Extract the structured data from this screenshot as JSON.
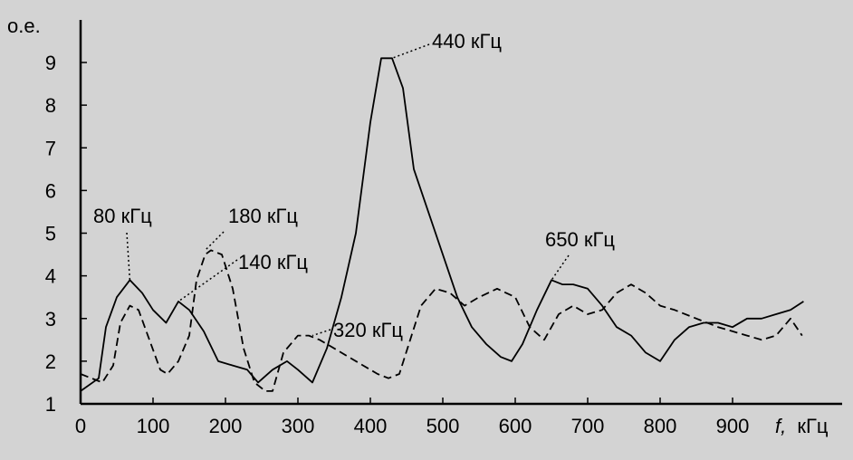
{
  "chart_data": {
    "type": "line",
    "xlabel_var": "f,",
    "xlabel_unit": "кГц",
    "ylabel": "о.е.",
    "xlim": [
      0,
      1000
    ],
    "ylim": [
      1,
      10
    ],
    "x_ticks": [
      "0",
      "100",
      "200",
      "300",
      "400",
      "500",
      "600",
      "700",
      "800",
      "900"
    ],
    "y_ticks": [
      "1",
      "2",
      "3",
      "4",
      "5",
      "6",
      "7",
      "8",
      "9"
    ],
    "grid": false,
    "legend": "none",
    "series": [
      {
        "style": "solid",
        "x": [
          0,
          25,
          35,
          50,
          68,
          85,
          100,
          118,
          135,
          150,
          170,
          190,
          210,
          230,
          245,
          265,
          285,
          300,
          320,
          340,
          360,
          380,
          400,
          415,
          430,
          445,
          460,
          480,
          500,
          520,
          540,
          560,
          580,
          595,
          610,
          630,
          650,
          665,
          680,
          700,
          720,
          740,
          760,
          780,
          800,
          820,
          840,
          860,
          880,
          900,
          920,
          940,
          960,
          980,
          998
        ],
        "y": [
          1.3,
          1.6,
          2.8,
          3.5,
          3.9,
          3.6,
          3.2,
          2.9,
          3.4,
          3.2,
          2.7,
          2.0,
          1.9,
          1.8,
          1.5,
          1.8,
          2.0,
          1.8,
          1.5,
          2.3,
          3.5,
          5.0,
          7.6,
          9.1,
          9.1,
          8.4,
          6.5,
          5.5,
          4.5,
          3.5,
          2.8,
          2.4,
          2.1,
          2.0,
          2.4,
          3.2,
          3.9,
          3.8,
          3.8,
          3.7,
          3.3,
          2.8,
          2.6,
          2.2,
          2.0,
          2.5,
          2.8,
          2.9,
          2.9,
          2.8,
          3.0,
          3.0,
          3.1,
          3.2,
          3.4
        ]
      },
      {
        "style": "dashed",
        "x": [
          0,
          15,
          30,
          45,
          55,
          68,
          80,
          95,
          110,
          120,
          135,
          150,
          160,
          172,
          180,
          195,
          210,
          225,
          240,
          255,
          265,
          280,
          300,
          315,
          330,
          350,
          370,
          390,
          410,
          425,
          440,
          455,
          470,
          490,
          510,
          530,
          550,
          575,
          600,
          620,
          640,
          660,
          680,
          700,
          720,
          740,
          760,
          780,
          800,
          820,
          850,
          880,
          900,
          920,
          940,
          960,
          980,
          996
        ],
        "y": [
          1.7,
          1.6,
          1.5,
          1.9,
          2.9,
          3.3,
          3.2,
          2.5,
          1.8,
          1.7,
          2.0,
          2.6,
          3.9,
          4.5,
          4.6,
          4.5,
          3.7,
          2.3,
          1.5,
          1.3,
          1.3,
          2.2,
          2.6,
          2.6,
          2.5,
          2.3,
          2.1,
          1.9,
          1.7,
          1.6,
          1.7,
          2.5,
          3.3,
          3.7,
          3.6,
          3.3,
          3.5,
          3.7,
          3.5,
          2.8,
          2.5,
          3.1,
          3.3,
          3.1,
          3.2,
          3.6,
          3.8,
          3.6,
          3.3,
          3.2,
          3.0,
          2.8,
          2.7,
          2.6,
          2.5,
          2.6,
          3.0,
          2.6
        ]
      }
    ],
    "annotations": [
      {
        "text": "80 кГц",
        "point": [
          68,
          3.9
        ]
      },
      {
        "text": "180 кГц",
        "point": [
          172,
          4.6
        ]
      },
      {
        "text": "140 кГц",
        "point": [
          135,
          3.4
        ]
      },
      {
        "text": "440 кГц",
        "point": [
          430,
          9.1
        ]
      },
      {
        "text": "320 кГц",
        "point": [
          320,
          2.6
        ]
      },
      {
        "text": "650 кГц",
        "point": [
          650,
          3.9
        ]
      }
    ]
  }
}
